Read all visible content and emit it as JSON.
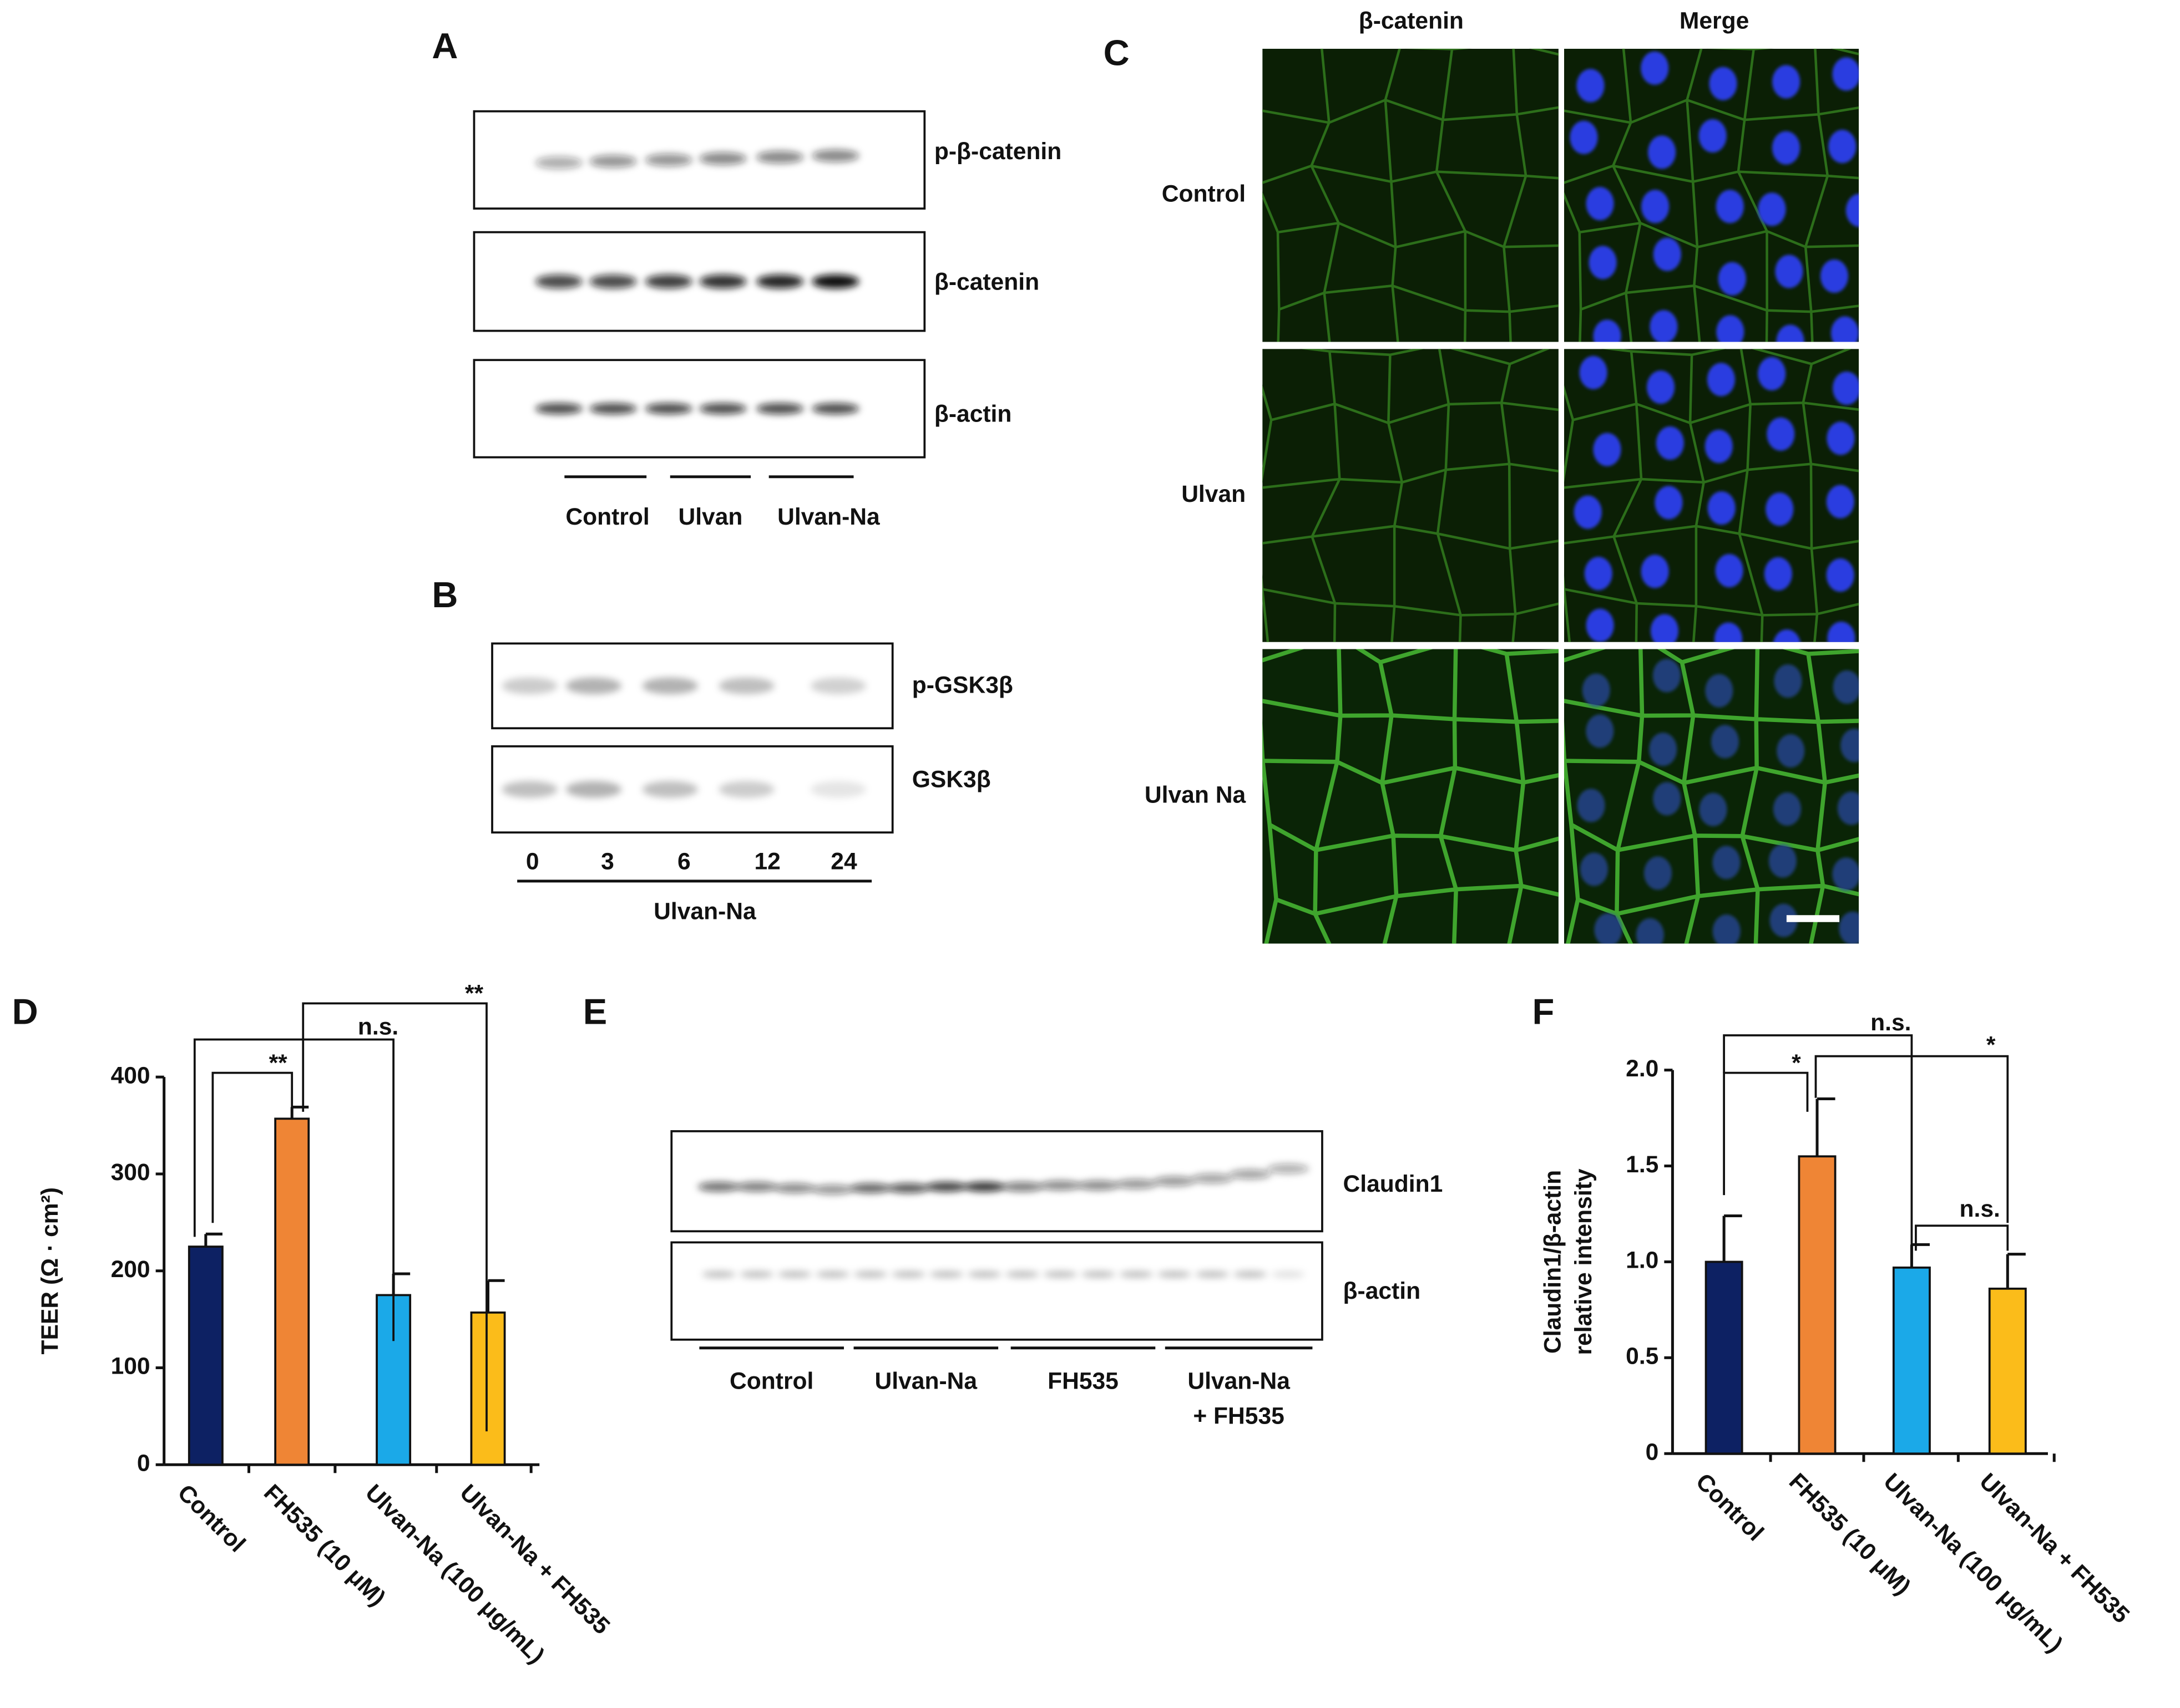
{
  "panel_a": {
    "label": "A",
    "bands": [
      "p-β-catenin",
      "β-catenin",
      "β-actin"
    ],
    "groups": [
      "Control",
      "Ulvan",
      "Ulvan-Na"
    ]
  },
  "panel_b": {
    "label": "B",
    "bands": [
      "p-GSK3β",
      "GSK3β"
    ],
    "lanes": [
      "0",
      "3",
      "6",
      "12",
      "24"
    ],
    "group": "Ulvan-Na"
  },
  "panel_c": {
    "label": "C",
    "columns": [
      "β-catenin",
      "Merge"
    ],
    "rows": [
      "Control",
      "Ulvan",
      "Ulvan Na"
    ]
  },
  "panel_e": {
    "label": "E",
    "bands": [
      "Claudin1",
      "β-actin"
    ],
    "groups": [
      [
        "Control"
      ],
      [
        "Ulvan-Na"
      ],
      [
        "FH535"
      ],
      [
        "Ulvan-Na",
        "+ FH535"
      ]
    ]
  },
  "chart_data": [
    {
      "type": "bar",
      "panel": "D",
      "ylabel": "TEER (Ω · cm²)",
      "categories": [
        "Control",
        "FH535 (10 μM)",
        "Ulvan-Na (100 μg/mL)",
        "Ulvan-Na + FH535"
      ],
      "values": [
        225,
        357,
        175,
        157
      ],
      "errors": [
        13,
        12,
        22,
        33
      ],
      "colors": [
        "#0d2163",
        "#ef8535",
        "#1ba9e8",
        "#fbbc1a"
      ],
      "ylim": [
        0,
        400
      ],
      "yticks": [
        0,
        100,
        200,
        300,
        400
      ],
      "annotations": [
        "**",
        "n.s.",
        "**"
      ]
    },
    {
      "type": "bar",
      "panel": "F",
      "ylabel": [
        "Claudin1/β-actin",
        "relative intensity"
      ],
      "categories": [
        "Control",
        "FH535 (10 μM)",
        "Ulvan-Na (100 μg/mL)",
        "Ulvan-Na + FH535"
      ],
      "values": [
        1.0,
        1.55,
        0.97,
        0.86
      ],
      "errors": [
        0.24,
        0.3,
        0.12,
        0.18
      ],
      "colors": [
        "#0d2163",
        "#ef8535",
        "#1ba9e8",
        "#fbbc1a"
      ],
      "ylim": [
        0,
        2
      ],
      "yticks": [
        0,
        0.5,
        {
          "value": 1,
          "label": "1.0"
        },
        1.5,
        {
          "value": 2,
          "label": "2.0"
        }
      ],
      "annotations": [
        "*",
        "n.s.",
        "*",
        "n.s."
      ]
    }
  ]
}
